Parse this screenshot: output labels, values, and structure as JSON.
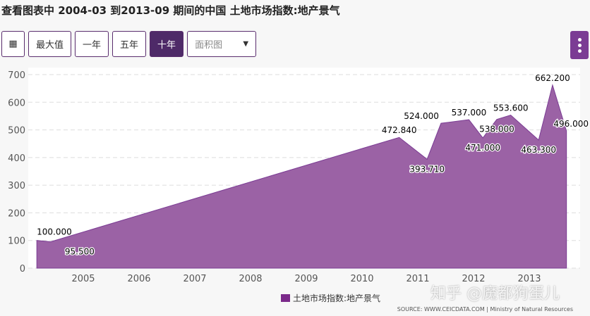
{
  "title": "查看图表中 2004-03 到2013-09 期间的中国 土地市场指数:地产景气",
  "toolbar": {
    "calendar_icon": "calendar-icon",
    "max": "最大值",
    "one_year": "一年",
    "five_year": "五年",
    "ten_year": "十年",
    "chart_type": "面积图",
    "menu_icon": "kebab-menu-icon"
  },
  "colors": {
    "area": "#9b62a5",
    "accent": "#4e2a68",
    "legend": "#7b2a8a"
  },
  "chart_data": {
    "type": "area",
    "title": "",
    "xlabel": "",
    "ylabel": "",
    "ylim": [
      0,
      700
    ],
    "yticks": [
      0,
      100,
      200,
      300,
      400,
      500,
      600,
      700
    ],
    "xticks": [
      "2005",
      "2006",
      "2007",
      "2008",
      "2009",
      "2010",
      "2011",
      "2012",
      "2013"
    ],
    "grid": true,
    "legend_position": "bottom",
    "series": [
      {
        "name": "土地市场指数:地产景气",
        "points": [
          {
            "x": "2004-03",
            "y": 100.0
          },
          {
            "x": "2004-06",
            "y": 95.5
          },
          {
            "x": "2010-09",
            "y": 472.84
          },
          {
            "x": "2011-03",
            "y": 393.71
          },
          {
            "x": "2011-06",
            "y": 524.0
          },
          {
            "x": "2011-12",
            "y": 537.0
          },
          {
            "x": "2012-03",
            "y": 471.0
          },
          {
            "x": "2012-06",
            "y": 538.0
          },
          {
            "x": "2012-09",
            "y": 553.6
          },
          {
            "x": "2013-03",
            "y": 463.3
          },
          {
            "x": "2013-06",
            "y": 662.2
          },
          {
            "x": "2013-09",
            "y": 496.0
          }
        ]
      }
    ]
  },
  "source": "SOURCE: WWW.CEICDATA.COM | Ministry of Natural Resources",
  "watermark": "知乎 @魔都狗蛋儿"
}
